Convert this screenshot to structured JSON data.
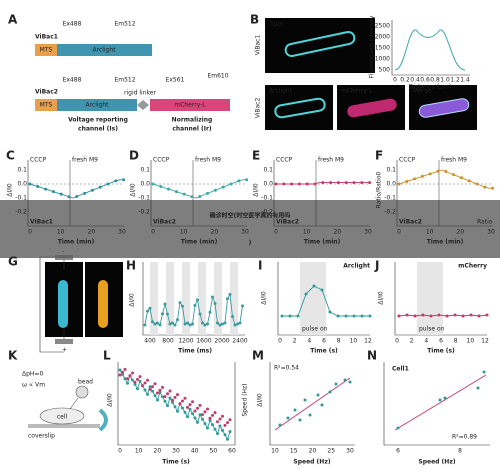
{
  "A": {
    "label": "A",
    "vibac1": "ViBac1",
    "mts1": "MTS",
    "arclight1": "Arclight",
    "ex1": "Ex488",
    "em1": "Em512",
    "vibac2": "ViBac2",
    "mts2": "MTS",
    "arclight2": "Arclight",
    "ex2": "Ex488",
    "em2": "Em512",
    "ex3": "Ex561",
    "em3": "Em610",
    "linker": "rigid linker",
    "mcherry": "mCherry-L",
    "voltage": [
      "Voltage reporting",
      "channel (Is)"
    ],
    "normal": [
      "Normalizing",
      "channel (Ir)"
    ]
  },
  "B": {
    "label": "B",
    "scale": "1μm",
    "row1": "ViBac1",
    "row2": "ViBac2",
    "ylabel": "Fluorescent Intensity",
    "xlabel": "Distance (μm)",
    "yticks": [
      "2500",
      "2000",
      "1500",
      "1000",
      "500"
    ],
    "xticks": [
      "0",
      "0.2",
      "0.4",
      "0.6",
      "0.8",
      "1.0",
      "1.2",
      "1.4"
    ],
    "images": [
      "Arclight",
      "mCherry-L",
      "Merge"
    ]
  },
  "cf": [
    {
      "label": "C",
      "cccp": "CCCP",
      "m9": "fresh M9",
      "ylabel": "ΔI/I0",
      "xlabel": "Time (min)",
      "xticks": [
        "0",
        "10",
        "20",
        "30"
      ],
      "yticks": [
        "0.1",
        "0.0",
        "-0.1",
        "-0.2"
      ],
      "tag": "ViBac1"
    },
    {
      "label": "D",
      "cccp": "CCCP",
      "m9": "fresh M9",
      "ylabel": "ΔI/I0",
      "xlabel": "Time (min)",
      "xticks": [
        "0",
        "10",
        "20",
        "30"
      ],
      "yticks": [
        "0.1",
        "0.0",
        "-0.1",
        "-0.2"
      ],
      "tag": "ViBac2"
    },
    {
      "label": "E",
      "cccp": "CCCP",
      "m9": "fresh M9",
      "ylabel": "ΔI/I0",
      "xlabel": "Time (min)",
      "xticks": [
        "0",
        "10",
        "20",
        "30"
      ],
      "yticks": [
        "0.1",
        "0.0",
        "-0.1",
        "-0.2"
      ],
      "tag": "ViBac2"
    },
    {
      "label": "F",
      "cccp": "CCCP",
      "m9": "fresh M9",
      "ylabel": "Ratio/Ratio0",
      "xlabel": "Time (min)",
      "xticks": [
        "0",
        "10",
        "20",
        "30"
      ],
      "yticks": [
        "0.1",
        "0.0",
        "-0.1",
        "-0.2"
      ],
      "tag": "ViBac2",
      "legend": "Ratio"
    }
  ],
  "G": {
    "label": "G",
    "plus": "+",
    "minus": "-"
  },
  "H": {
    "label": "H",
    "ylabel": "ΔI/I0",
    "xlabel": "Time (ms)",
    "xticks": [
      "400",
      "800",
      "1200",
      "1600",
      "2000",
      "2400"
    ]
  },
  "I": {
    "label": "I",
    "title": "Arclight",
    "ylabel": "ΔI/I0",
    "xlabel": "Time (s)",
    "pulse": "pulse on",
    "xticks": [
      "0",
      "2",
      "4",
      "6",
      "8",
      "10",
      "12"
    ]
  },
  "J": {
    "label": "J",
    "title": "mCherry",
    "ylabel": "ΔI/I0",
    "xlabel": "Time (s)",
    "pulse": "pulse on",
    "xticks": [
      "0",
      "2",
      "4",
      "6",
      "8",
      "10",
      "12"
    ]
  },
  "K": {
    "label": "K",
    "dph": "ΔpH=0",
    "omega": "ω ∝ Vm",
    "bead": "bead",
    "cell": "cell",
    "coverslip": "coverslip"
  },
  "L": {
    "label": "L",
    "xlabel": "Time (s)",
    "ylabel": "ΔI/I0",
    "y2label": "Speed (Hz)",
    "xticks": [
      "0",
      "10",
      "20",
      "30",
      "40",
      "50",
      "60"
    ]
  },
  "M": {
    "label": "M",
    "r2": "R²=0.54",
    "xlabel": "Speed (Hz)",
    "ylabel": "ΔI/I0",
    "xticks": [
      "10",
      "15",
      "20",
      "25",
      "30"
    ]
  },
  "N": {
    "label": "N",
    "title": "Cell1",
    "r2": "R²=0.89",
    "xlabel": "Speed (Hz)",
    "xticks": [
      "6",
      "8"
    ]
  },
  "banner": [
    "确诊时空(时空医学真的有用吗",
    ")"
  ]
}
